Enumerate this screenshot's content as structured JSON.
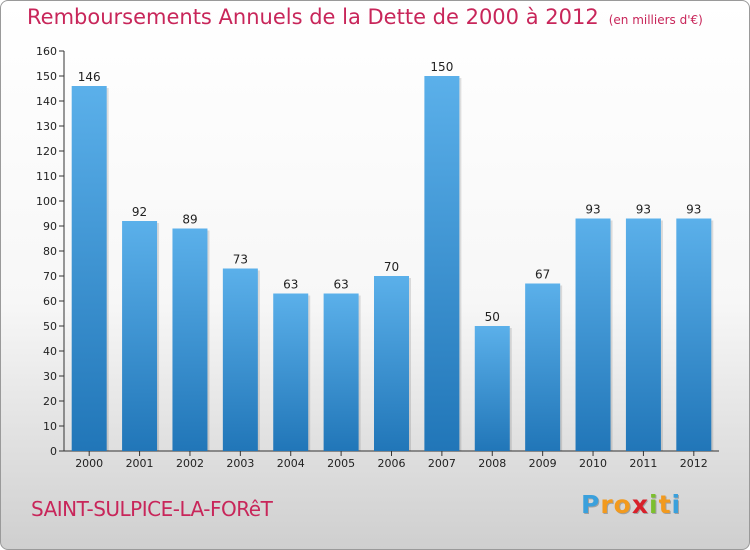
{
  "title": "Remboursements Annuels de la Dette de 2000 à 2012",
  "unit": "(en milliers d'€)",
  "commune": "SAINT-SULPICE-LA-FORêT",
  "logo": {
    "letters": [
      "P",
      "r",
      "o",
      "x",
      "i",
      "t",
      "i"
    ],
    "colors": [
      "#3aa0dc",
      "#f29a1e",
      "#f29a1e",
      "#d8202a",
      "#7cbf2e",
      "#f29a1e",
      "#3aa0dc"
    ]
  },
  "chart_data": {
    "type": "bar",
    "categories": [
      "2000",
      "2001",
      "2002",
      "2003",
      "2004",
      "2005",
      "2006",
      "2007",
      "2008",
      "2009",
      "2010",
      "2011",
      "2012"
    ],
    "values": [
      146,
      92,
      89,
      73,
      63,
      63,
      70,
      150,
      50,
      67,
      93,
      93,
      93
    ],
    "ylim": [
      0,
      160
    ],
    "ytick_step": 10,
    "bar_color_top": "#5bb0ea",
    "bar_color_bottom": "#2176b8",
    "grid": false
  }
}
